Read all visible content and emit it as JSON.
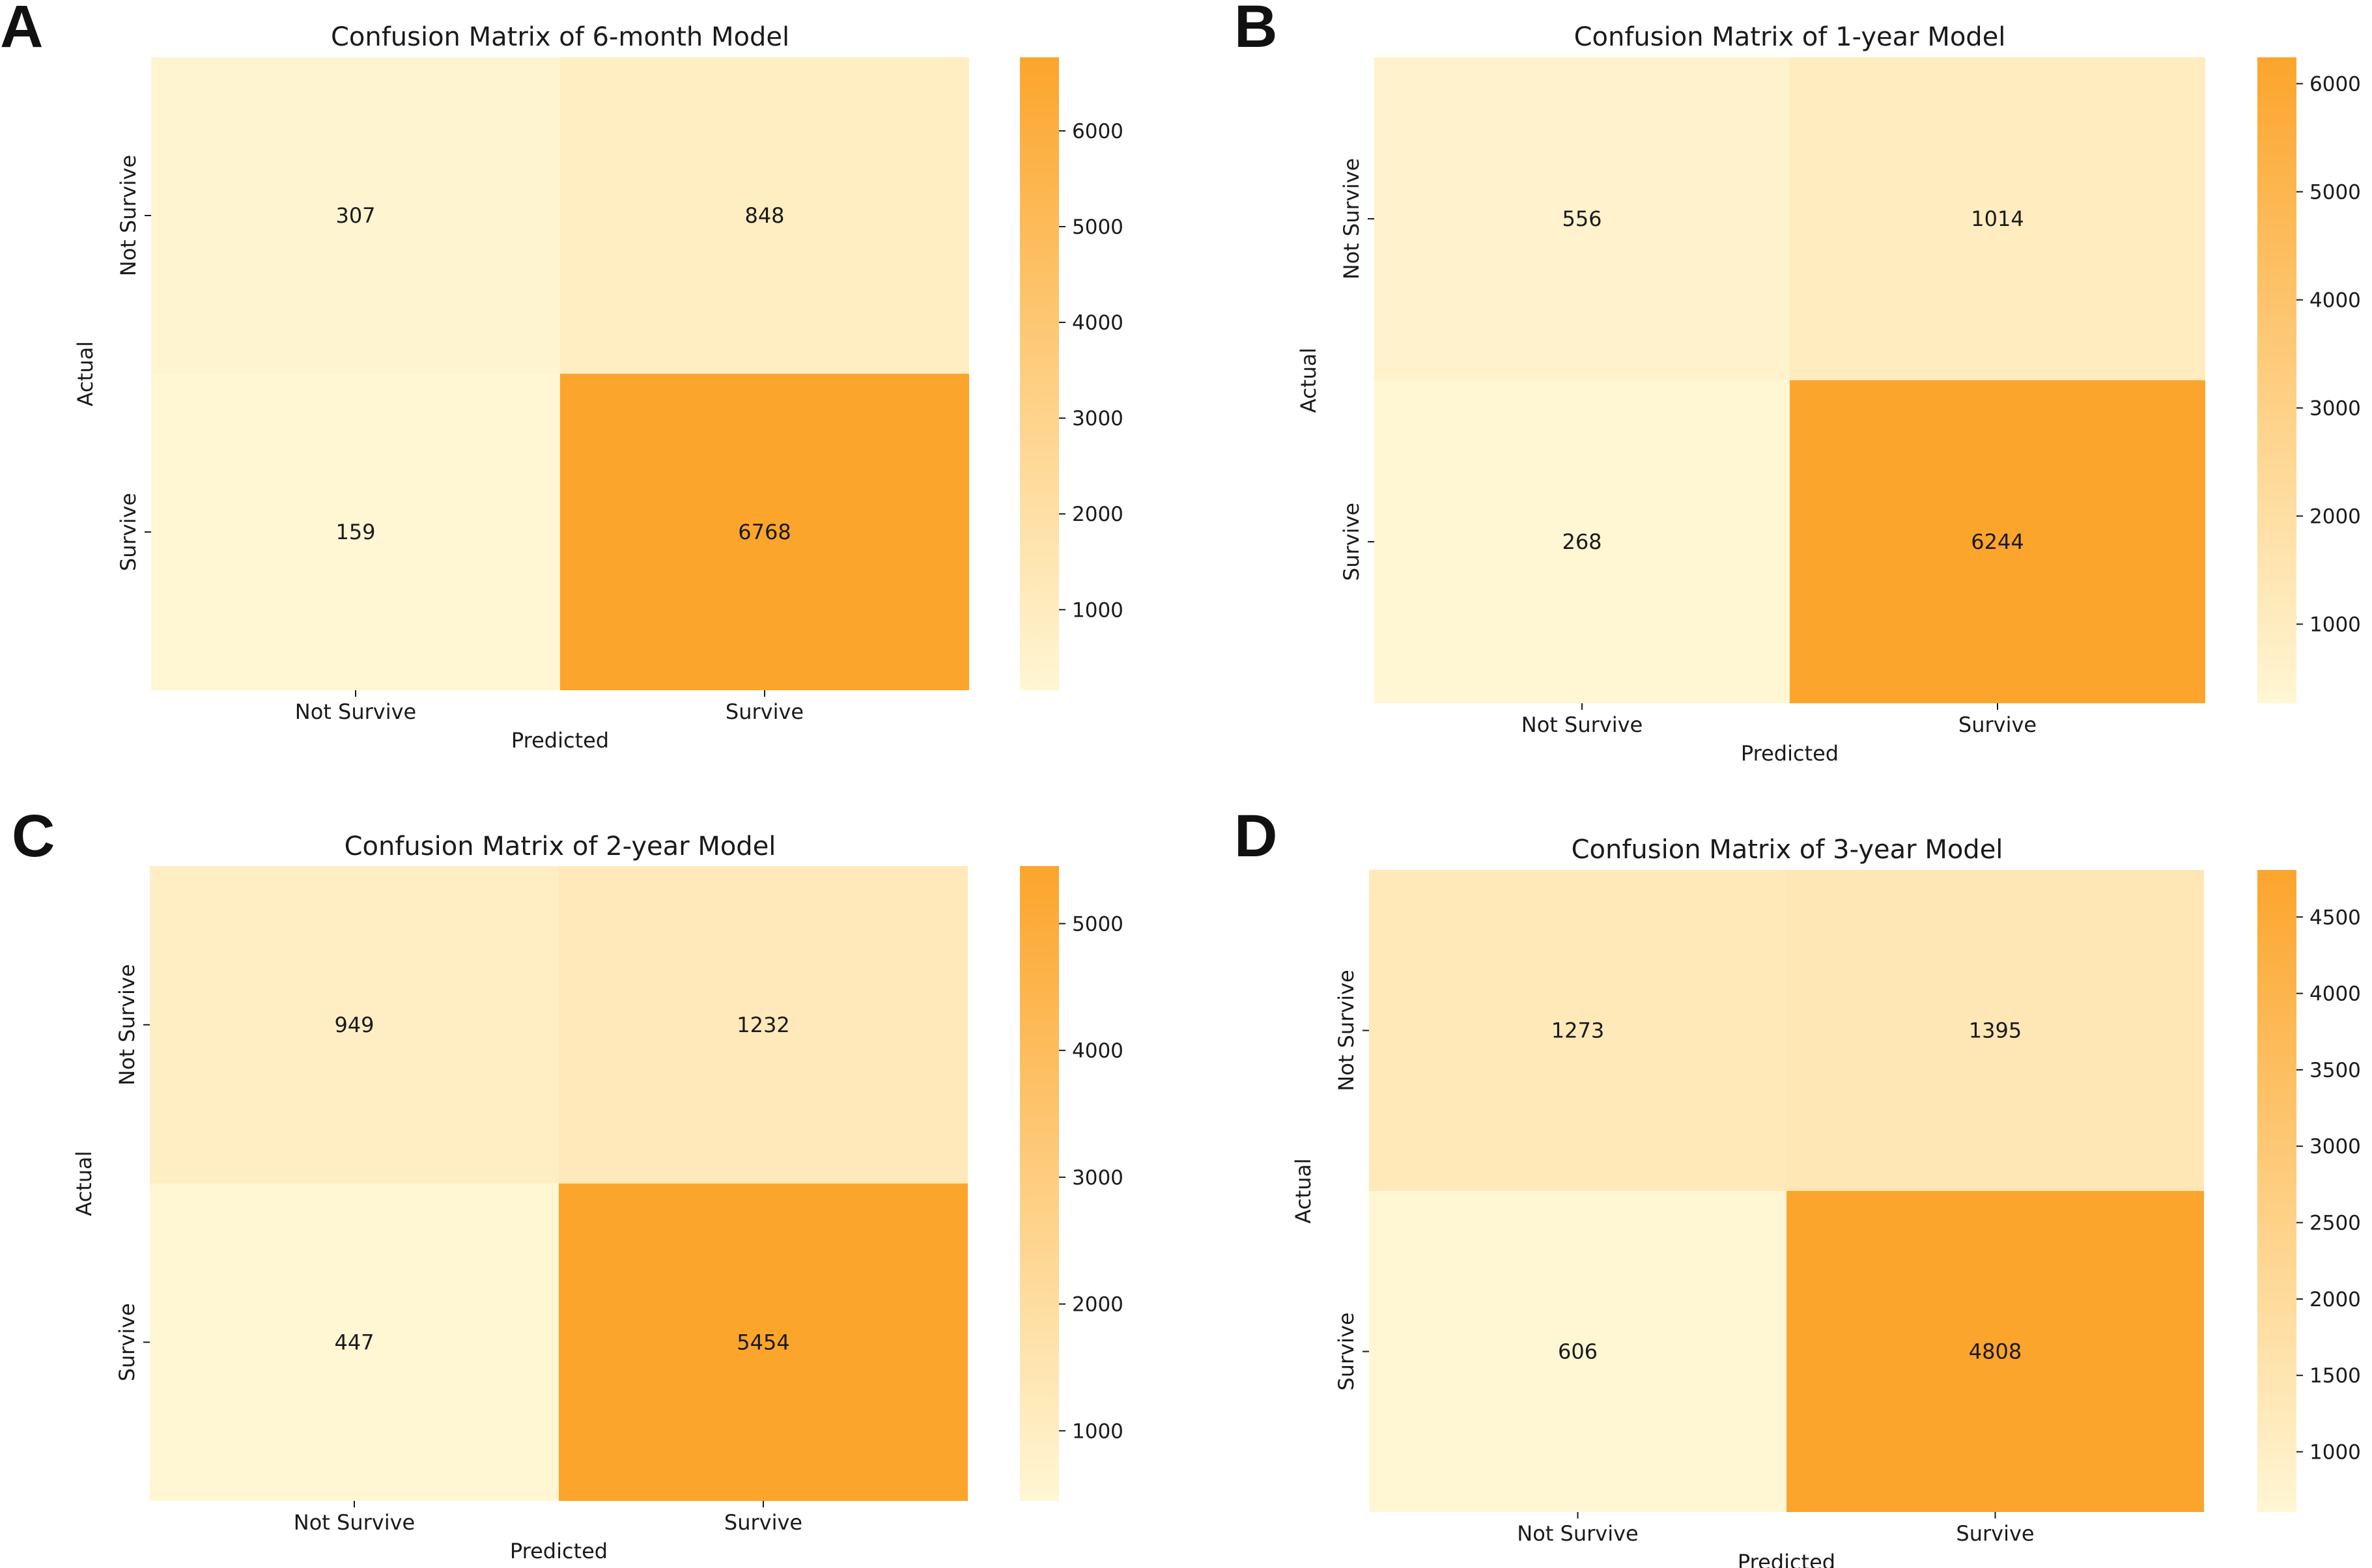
{
  "figure": {
    "colormap": {
      "low": "#fff6d4",
      "high": "#fca52c"
    }
  },
  "chart_data": [
    {
      "type": "heatmap",
      "panel_letter": "A",
      "title": "Confusion Matrix of 6-month Model",
      "xlabel": "Predicted",
      "ylabel": "Actual",
      "x_categories": [
        "Not Survive",
        "Survive"
      ],
      "y_categories": [
        "Not Survive",
        "Survive"
      ],
      "values": [
        [
          307,
          848
        ],
        [
          159,
          6768
        ]
      ],
      "colorbar": {
        "min": 159,
        "max": 6768,
        "ticks": [
          1000,
          2000,
          3000,
          4000,
          5000,
          6000
        ]
      }
    },
    {
      "type": "heatmap",
      "panel_letter": "B",
      "title": "Confusion Matrix of 1-year Model",
      "xlabel": "Predicted",
      "ylabel": "Actual",
      "x_categories": [
        "Not Survive",
        "Survive"
      ],
      "y_categories": [
        "Not Survive",
        "Survive"
      ],
      "values": [
        [
          556,
          1014
        ],
        [
          268,
          6244
        ]
      ],
      "colorbar": {
        "min": 268,
        "max": 6244,
        "ticks": [
          1000,
          2000,
          3000,
          4000,
          5000,
          6000
        ]
      }
    },
    {
      "type": "heatmap",
      "panel_letter": "C",
      "title": "Confusion Matrix of 2-year Model",
      "xlabel": "Predicted",
      "ylabel": "Actual",
      "x_categories": [
        "Not Survive",
        "Survive"
      ],
      "y_categories": [
        "Not Survive",
        "Survive"
      ],
      "values": [
        [
          949,
          1232
        ],
        [
          447,
          5454
        ]
      ],
      "colorbar": {
        "min": 447,
        "max": 5454,
        "ticks": [
          1000,
          2000,
          3000,
          4000,
          5000
        ]
      }
    },
    {
      "type": "heatmap",
      "panel_letter": "D",
      "title": "Confusion Matrix of 3-year Model",
      "xlabel": "Predicted",
      "ylabel": "Actual",
      "x_categories": [
        "Not Survive",
        "Survive"
      ],
      "y_categories": [
        "Not Survive",
        "Survive"
      ],
      "values": [
        [
          1273,
          1395
        ],
        [
          606,
          4808
        ]
      ],
      "colorbar": {
        "min": 606,
        "max": 4808,
        "ticks": [
          1000,
          1500,
          2000,
          2500,
          3000,
          3500,
          4000,
          4500
        ]
      }
    }
  ]
}
